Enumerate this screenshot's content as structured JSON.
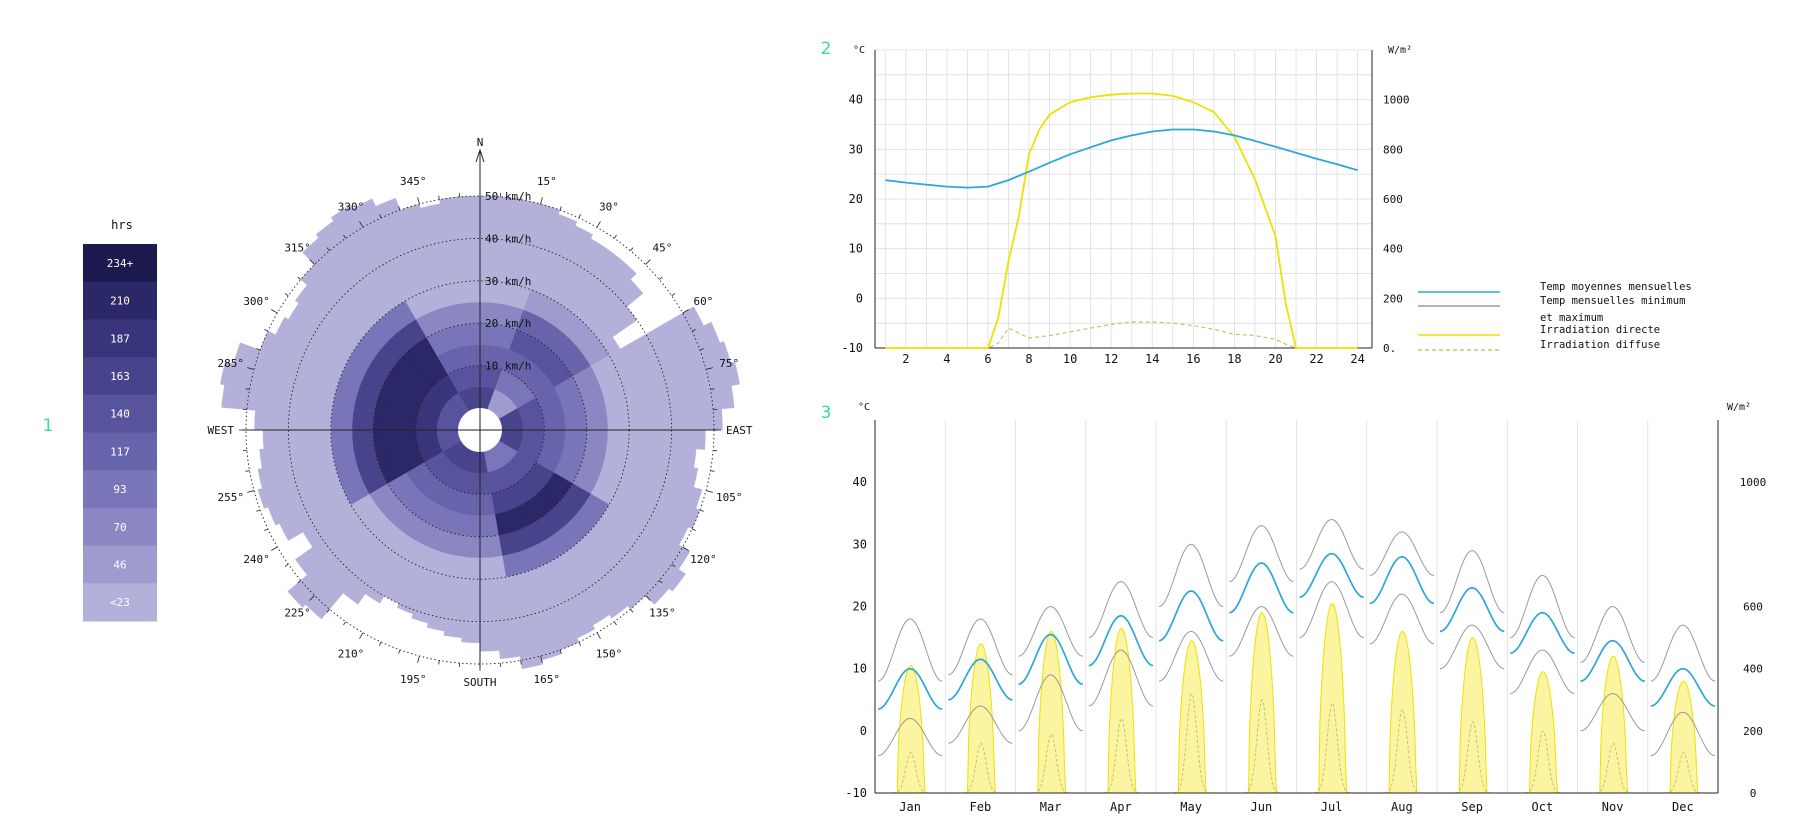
{
  "colors": {
    "panel_number": "#3ddc97",
    "temp_mean": "#2aa8d8",
    "temp_minmax": "#9a9a9a",
    "irr_direct": "#f0e000",
    "irr_direct_fill": "#fbf4a0",
    "irr_diffuse": "#c8c070",
    "wind_palette": [
      "#b3b1da",
      "#9e9bcf",
      "#8a87c3",
      "#7875b8",
      "#6764ab",
      "#57549d",
      "#47448c",
      "#38357a",
      "#2a2866",
      "#1c1b4f"
    ]
  },
  "panels": [
    "1",
    "2",
    "3"
  ],
  "chart_data": [
    {
      "type": "wind-rose",
      "legend": {
        "title": "hrs",
        "labels": [
          "234+",
          "210",
          "187",
          "163",
          "140",
          "117",
          "93",
          "70",
          "46",
          "<23"
        ]
      },
      "compass": {
        "north": "N",
        "south": "SOUTH",
        "east": "EAST",
        "west": "WEST"
      },
      "angle_labels": [
        "15°",
        "30°",
        "45°",
        "60°",
        "75°",
        "105°",
        "120°",
        "135°",
        "150°",
        "165°",
        "195°",
        "210°",
        "225°",
        "240°",
        "255°",
        "285°",
        "300°",
        "315°",
        "330°",
        "345°"
      ],
      "angle_values": [
        15,
        30,
        45,
        60,
        75,
        105,
        120,
        135,
        150,
        165,
        195,
        210,
        225,
        240,
        255,
        285,
        300,
        315,
        330,
        345
      ],
      "speed_labels": [
        "10 km/h",
        "20 km/h",
        "30 km/h",
        "40 km/h",
        "50 km/h"
      ],
      "speed_values": [
        10,
        20,
        30,
        40,
        50
      ],
      "direction_step_deg": 10,
      "speed_bin_kmh": 5,
      "max_extent_kmh": [
        50,
        50,
        50,
        50,
        49,
        48,
        47,
        47,
        47,
        45,
        40,
        33,
        53,
        55,
        56,
        57,
        55,
        52,
        48,
        46,
        47,
        49,
        50,
        49,
        52,
        54,
        53,
        50,
        49,
        48,
        49,
        50,
        51,
        52,
        49,
        47,
        45,
        44,
        43,
        42,
        41,
        40,
        42,
        45,
        53,
        54,
        48,
        43,
        47,
        48,
        49,
        48,
        47,
        46,
        48,
        56,
        57,
        55,
        50,
        48,
        47,
        48,
        50,
        54,
        55,
        56,
        55,
        53,
        50,
        49,
        50,
        50
      ],
      "intensity_note": "per direction, colour index 0-9 by distance band"
    },
    {
      "type": "line",
      "x": [
        1,
        2,
        3,
        4,
        5,
        6,
        7,
        8,
        9,
        10,
        11,
        12,
        13,
        14,
        15,
        16,
        17,
        18,
        19,
        20,
        21,
        22,
        23,
        24
      ],
      "x_ticks": [
        2,
        4,
        6,
        8,
        10,
        12,
        14,
        16,
        18,
        20,
        22,
        24
      ],
      "y_left_label": "°C",
      "y_left_ticks": [
        -10,
        0,
        10,
        20,
        30,
        40
      ],
      "y_left_lim": [
        -10,
        50
      ],
      "y_right_label": "W/m²",
      "y_right_ticks": [
        0,
        200,
        400,
        600,
        800,
        1000
      ],
      "y_right_tick_labels": [
        "0.",
        "200",
        "400",
        "600",
        "800",
        "1000"
      ],
      "y_right_lim": [
        0,
        1200
      ],
      "series": [
        {
          "name": "Temp moyennes mensuelles",
          "axis": "left",
          "values": [
            23.8,
            23.3,
            22.9,
            22.5,
            22.3,
            22.5,
            23.8,
            25.5,
            27.3,
            29.0,
            30.4,
            31.8,
            32.8,
            33.6,
            34.0,
            34.0,
            33.6,
            32.8,
            31.7,
            30.5,
            29.3,
            28.1,
            27.0,
            25.8
          ]
        },
        {
          "name": "Irradiation directe",
          "axis": "right",
          "x": [
            1,
            2,
            3,
            4,
            5,
            6,
            6.5,
            7,
            7.5,
            8,
            8.5,
            9,
            10,
            11,
            12,
            13,
            14,
            15,
            16,
            17,
            18,
            19,
            20,
            20.5,
            21,
            22,
            23,
            24
          ],
          "values": [
            0,
            0,
            0,
            0,
            0,
            0,
            120,
            350,
            530,
            780,
            880,
            940,
            990,
            1010,
            1020,
            1025,
            1025,
            1015,
            990,
            950,
            850,
            680,
            450,
            180,
            0,
            0,
            0,
            0
          ]
        },
        {
          "name": "Irradiation diffuse",
          "axis": "right",
          "x": [
            1,
            2,
            3,
            4,
            5,
            6,
            6.5,
            7,
            7.5,
            8,
            9,
            10,
            11,
            12,
            13,
            14,
            15,
            16,
            17,
            18,
            19,
            20,
            20.5,
            21,
            22,
            23,
            24
          ],
          "values": [
            0,
            0,
            0,
            0,
            0,
            0,
            20,
            80,
            60,
            40,
            50,
            65,
            80,
            95,
            105,
            105,
            100,
            90,
            75,
            55,
            50,
            35,
            15,
            0,
            0,
            0,
            0
          ]
        }
      ],
      "legend": [
        "Temp moyennes mensuelles",
        "Temp mensuelles minimum",
        "et maximum",
        "Irradiation directe",
        "Irradiation diffuse"
      ]
    },
    {
      "type": "line",
      "categories": [
        "Jan",
        "Feb",
        "Mar",
        "Apr",
        "May",
        "Jun",
        "Jul",
        "Aug",
        "Sep",
        "Oct",
        "Nov",
        "Dec"
      ],
      "y_left_label": "°C",
      "y_left_ticks": [
        -10,
        0,
        10,
        20,
        30,
        40
      ],
      "y_left_lim": [
        -10,
        50
      ],
      "y_right_label": "W/m²",
      "y_right_ticks": [
        0,
        200,
        400,
        600,
        1000
      ],
      "y_right_lim": [
        0,
        1200
      ],
      "monthly": {
        "temp_min_mean": [
          3.5,
          5.0,
          7.5,
          10.5,
          14.5,
          19.0,
          21.5,
          20.5,
          16.0,
          12.5,
          8.0,
          4.0
        ],
        "temp_max_mean": [
          10.0,
          11.5,
          15.5,
          18.5,
          22.5,
          27.0,
          28.5,
          28.0,
          23.0,
          19.0,
          14.5,
          10.0
        ],
        "temp_low_lower": [
          -4,
          -2,
          0,
          4,
          8,
          12,
          15,
          14,
          10,
          6,
          0,
          -4
        ],
        "temp_low_upper": [
          2,
          4,
          9,
          13,
          16,
          20,
          24,
          22,
          17,
          13,
          6,
          3
        ],
        "temp_high_lower": [
          8,
          9,
          12,
          15,
          20,
          24,
          26,
          25,
          19,
          15,
          11,
          8
        ],
        "temp_high_upper": [
          18,
          18,
          20,
          24,
          30,
          33,
          34,
          32,
          29,
          25,
          20,
          17
        ],
        "irr_direct_peak": [
          410,
          480,
          520,
          530,
          490,
          580,
          610,
          520,
          500,
          390,
          440,
          360
        ],
        "irr_diffuse_peak": [
          130,
          160,
          190,
          240,
          320,
          300,
          290,
          270,
          230,
          200,
          160,
          130
        ]
      }
    }
  ]
}
